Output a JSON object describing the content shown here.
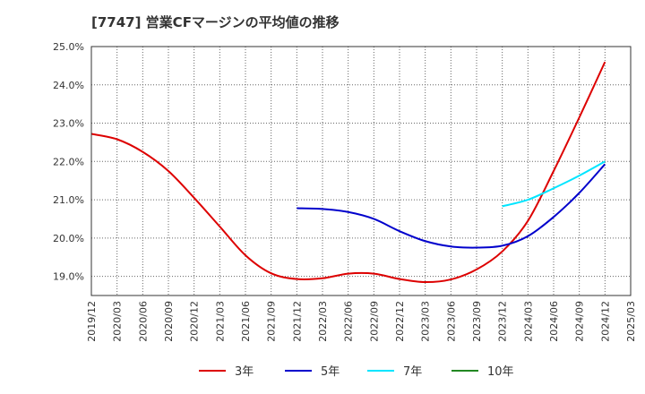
{
  "chart_data": {
    "type": "line",
    "title": "[7747]  営業CFマージンの平均値の推移",
    "xlabel": "",
    "ylabel": "",
    "ylim": [
      18.5,
      25.0
    ],
    "grid": true,
    "legend_position": "bottom",
    "y_ticks": [
      "19.0%",
      "20.0%",
      "21.0%",
      "22.0%",
      "23.0%",
      "24.0%",
      "25.0%"
    ],
    "x_ticks": [
      "2019/12",
      "2020/03",
      "2020/06",
      "2020/09",
      "2020/12",
      "2021/03",
      "2021/06",
      "2021/09",
      "2021/12",
      "2022/03",
      "2022/06",
      "2022/09",
      "2022/12",
      "2023/03",
      "2023/06",
      "2023/09",
      "2023/12",
      "2024/03",
      "2024/06",
      "2024/09",
      "2024/12",
      "2025/03"
    ],
    "series": [
      {
        "name": "3年",
        "color": "#dd0000",
        "x": [
          "2019/12",
          "2020/03",
          "2020/06",
          "2020/09",
          "2020/12",
          "2021/03",
          "2021/06",
          "2021/09",
          "2021/12",
          "2022/03",
          "2022/06",
          "2022/09",
          "2022/12",
          "2023/03",
          "2023/06",
          "2023/09",
          "2023/12",
          "2024/03",
          "2024/06",
          "2024/09",
          "2024/12"
        ],
        "values": [
          22.72,
          22.58,
          22.25,
          21.75,
          21.05,
          20.3,
          19.55,
          19.08,
          18.93,
          18.95,
          19.07,
          19.07,
          18.93,
          18.85,
          18.92,
          19.18,
          19.65,
          20.45,
          21.75,
          23.15,
          24.6
        ]
      },
      {
        "name": "5年",
        "color": "#0000cc",
        "x": [
          "2021/12",
          "2022/03",
          "2022/06",
          "2022/09",
          "2022/12",
          "2023/03",
          "2023/06",
          "2023/09",
          "2023/12",
          "2024/03",
          "2024/06",
          "2024/09",
          "2024/12"
        ],
        "values": [
          20.78,
          20.76,
          20.68,
          20.5,
          20.18,
          19.92,
          19.78,
          19.75,
          19.8,
          20.05,
          20.55,
          21.18,
          21.93
        ]
      },
      {
        "name": "7年",
        "color": "#00e5ff",
        "x": [
          "2023/12",
          "2024/03",
          "2024/06",
          "2024/09",
          "2024/12"
        ],
        "values": [
          20.83,
          21.0,
          21.3,
          21.63,
          22.0
        ]
      },
      {
        "name": "10年",
        "color": "#228822",
        "x": [],
        "values": []
      }
    ]
  }
}
